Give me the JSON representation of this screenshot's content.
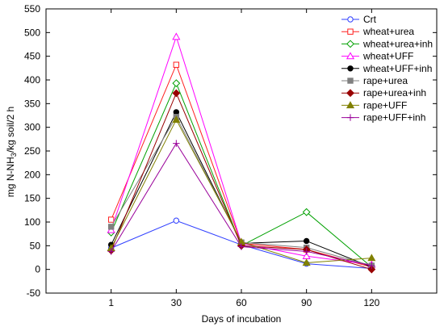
{
  "chart_data": {
    "type": "line",
    "title": "",
    "xlabel": "Days of incubation",
    "ylabel_parts": [
      "mg N-NH",
      "3",
      "/kg soil/2 h"
    ],
    "ylim": [
      -50,
      550
    ],
    "y_ticks": [
      -50,
      0,
      50,
      100,
      150,
      200,
      250,
      300,
      350,
      400,
      450,
      500,
      550
    ],
    "categories": [
      "1",
      "30",
      "60",
      "90",
      "120"
    ],
    "grid": false,
    "legend_position": "top-right",
    "series": [
      {
        "name": "Crt",
        "color": "#2f3fff",
        "marker": "circle-open",
        "values": [
          45,
          103,
          52,
          12,
          2
        ]
      },
      {
        "name": "wheat+urea",
        "color": "#ff2020",
        "marker": "square-open",
        "values": [
          105,
          432,
          55,
          42,
          5
        ]
      },
      {
        "name": "wheat+urea+inh",
        "color": "#00a000",
        "marker": "diamond-open",
        "values": [
          78,
          393,
          50,
          121,
          5
        ]
      },
      {
        "name": "wheat+UFF",
        "color": "#ff00ff",
        "marker": "triangle-open",
        "values": [
          83,
          491,
          55,
          28,
          10
        ]
      },
      {
        "name": "wheat+UFF+inh",
        "color": "#000000",
        "marker": "circle-filled",
        "values": [
          52,
          332,
          55,
          60,
          5
        ]
      },
      {
        "name": "rape+urea",
        "color": "#808080",
        "marker": "square-filled",
        "values": [
          90,
          322,
          57,
          46,
          8
        ]
      },
      {
        "name": "rape+urea+inh",
        "color": "#990000",
        "marker": "diamond-filled",
        "values": [
          40,
          372,
          50,
          42,
          0
        ]
      },
      {
        "name": "rape+UFF",
        "color": "#808000",
        "marker": "triangle-filled",
        "values": [
          45,
          316,
          58,
          14,
          24
        ]
      },
      {
        "name": "rape+UFF+inh",
        "color": "#990099",
        "marker": "plus",
        "values": [
          38,
          266,
          48,
          38,
          8
        ]
      }
    ]
  }
}
